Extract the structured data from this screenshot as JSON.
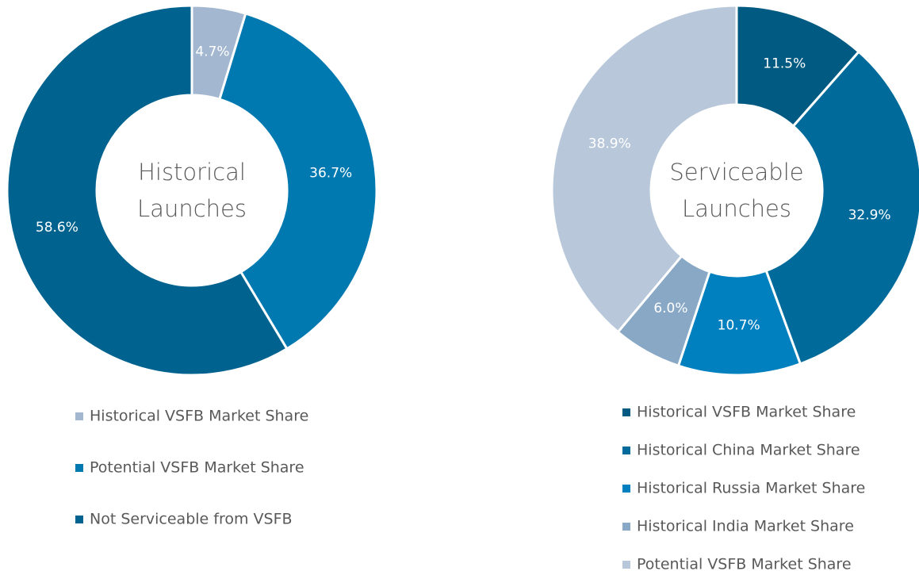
{
  "chart_data": [
    {
      "type": "donut",
      "title": "Historical Launches",
      "categories": [
        "Historical VSFB Market Share",
        "Potential VSFB Market Share",
        "Not Serviceable from VSFB"
      ],
      "values": [
        4.7,
        36.7,
        58.6
      ],
      "value_labels": [
        "4.7%",
        "36.7%",
        "58.6%"
      ],
      "colors": [
        "#a3b8d0",
        "#0079b1",
        "#00628e"
      ]
    },
    {
      "type": "donut",
      "title": "Serviceable Launches",
      "categories": [
        "Historical VSFB Market Share",
        "Historical China Market Share",
        "Historical Russia Market Share",
        "Historical India Market Share",
        "Potential VSFB Market Share"
      ],
      "values": [
        11.5,
        32.9,
        10.7,
        6.0,
        38.9
      ],
      "value_labels": [
        "11.5%",
        "32.9%",
        "10.7%",
        "6.0%",
        "38.9%"
      ],
      "colors": [
        "#005a82",
        "#006b9b",
        "#0080bf",
        "#88a8c6",
        "#b8c8da"
      ]
    }
  ]
}
